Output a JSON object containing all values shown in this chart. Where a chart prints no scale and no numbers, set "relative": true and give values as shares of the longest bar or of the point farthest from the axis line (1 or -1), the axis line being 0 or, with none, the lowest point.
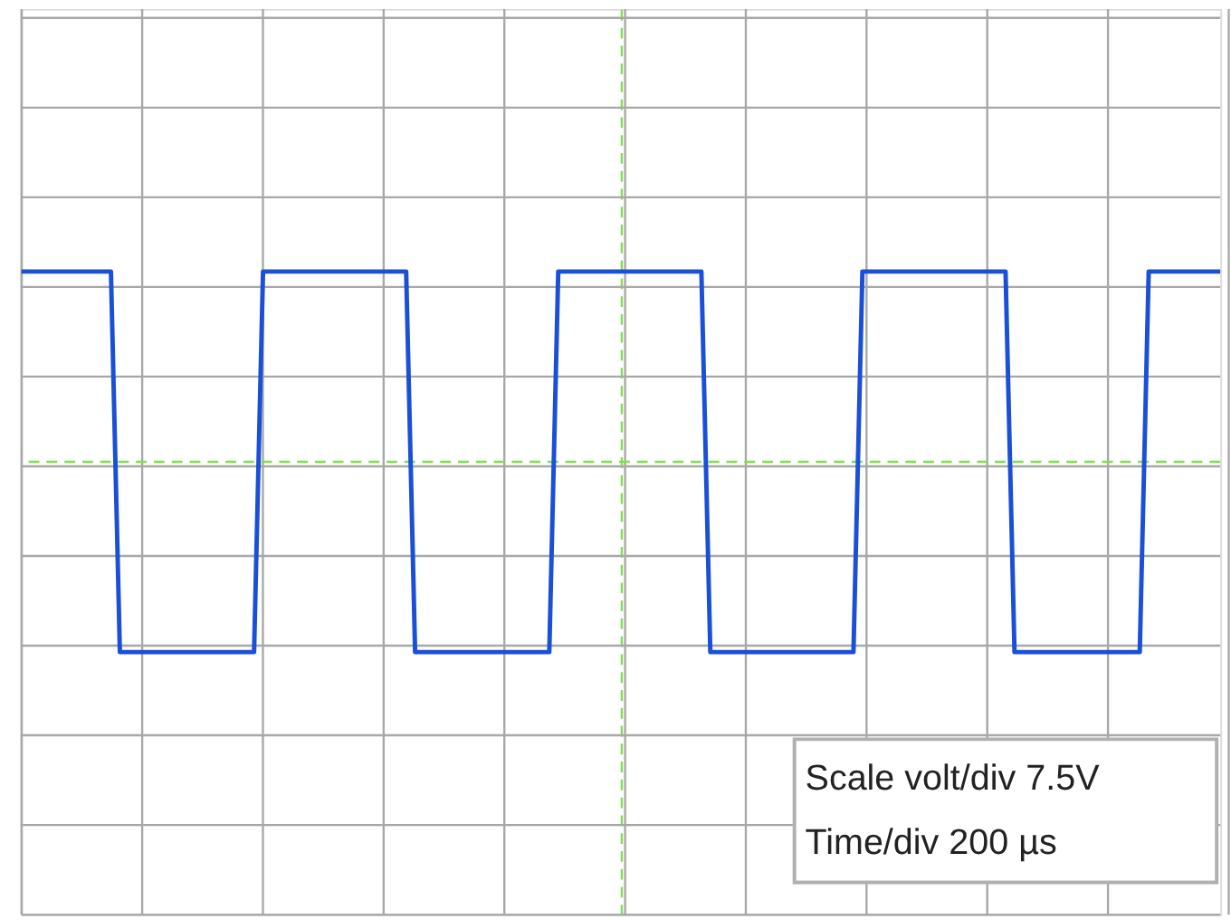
{
  "chart_data": {
    "type": "line",
    "relative": true,
    "categories": [
      null,
      null,
      null,
      null,
      null,
      null,
      null,
      null,
      null,
      null,
      null,
      null,
      null,
      null,
      null,
      null,
      null,
      null,
      null,
      null,
      null,
      null,
      null,
      null,
      null,
      null,
      null,
      null,
      null,
      null,
      null,
      null,
      null,
      null,
      null,
      null,
      null,
      null,
      null,
      null,
      null,
      null,
      null,
      null,
      null,
      null,
      null,
      null,
      null,
      null,
      null,
      null,
      null,
      null,
      null,
      null,
      null,
      null,
      null,
      null,
      null,
      null,
      null,
      null,
      null,
      null,
      null,
      null,
      null,
      null,
      null,
      null,
      null,
      null,
      null,
      null,
      null,
      null,
      null,
      null,
      null,
      null,
      null,
      null,
      null,
      null,
      null,
      null,
      null,
      null,
      null,
      null,
      null,
      null,
      null,
      null,
      null,
      null,
      null,
      null,
      null,
      null,
      null,
      null,
      null,
      null,
      null,
      null,
      null,
      null,
      null,
      null,
      null,
      null,
      null,
      null,
      null,
      null,
      null,
      null,
      null,
      null,
      null,
      null,
      null,
      null,
      null,
      null,
      null,
      null,
      null,
      null,
      null,
      null,
      null
    ],
    "series": [
      {
        "color": "#1a4fd8",
        "values": [
          1,
          1,
          1,
          1,
          1,
          1,
          1,
          1,
          1,
          1,
          1,
          -1,
          -1,
          -1,
          -1,
          -1,
          -1,
          -1,
          -1,
          -1,
          -1,
          -1,
          -1,
          -1,
          -1,
          -1,
          -1,
          1,
          1,
          1,
          1,
          1,
          1,
          1,
          1,
          1,
          1,
          1,
          1,
          1,
          1,
          1,
          1,
          1,
          -1,
          -1,
          -1,
          -1,
          -1,
          -1,
          -1,
          -1,
          -1,
          -1,
          -1,
          -1,
          -1,
          -1,
          -1,
          -1,
          1,
          1,
          1,
          1,
          1,
          1,
          1,
          1,
          1,
          1,
          1,
          1,
          1,
          1,
          1,
          1,
          1,
          -1,
          -1,
          -1,
          -1,
          -1,
          -1,
          -1,
          -1,
          -1,
          -1,
          -1,
          -1,
          -1,
          -1,
          -1,
          -1,
          -1,
          1,
          1,
          1,
          1,
          1,
          1,
          1,
          1,
          1,
          1,
          1,
          1,
          1,
          1,
          1,
          1,
          1,
          -1,
          -1,
          -1,
          -1,
          -1,
          -1,
          -1,
          -1,
          -1,
          -1,
          -1,
          -1,
          -1,
          -1,
          -1,
          1,
          1,
          1,
          1,
          1,
          1,
          1,
          1,
          1
        ]
      }
    ],
    "ref_lines": [
      {
        "axis": "y",
        "value": 0,
        "color": "#7ee04a",
        "line_style": "dashed"
      }
    ],
    "grid": true,
    "tick_labels": false,
    "marker": "none",
    "line_style": "solid",
    "annotations": [
      "Scale volt/div 7.5V",
      "Time/div 200 µs"
    ]
  }
}
